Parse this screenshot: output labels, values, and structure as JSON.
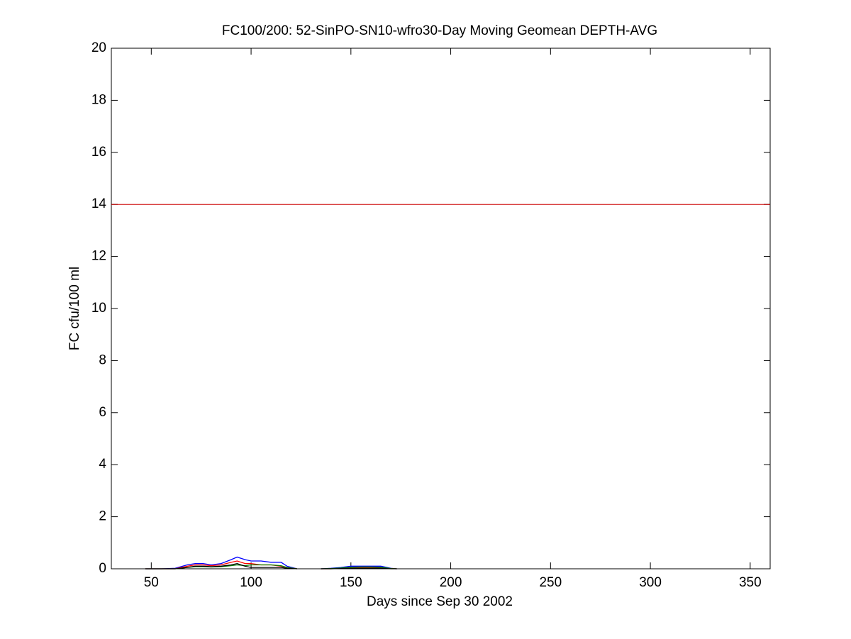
{
  "chart_data": {
    "type": "line",
    "title": "FC100/200: 52-SinPO-SN10-wfro30-Day Moving Geomean DEPTH-AVG",
    "xlabel": "Days since Sep 30 2002",
    "ylabel": "FC cfu/100 ml",
    "x": [
      47,
      55,
      62,
      68,
      72,
      76,
      80,
      85,
      90,
      93,
      97,
      100,
      105,
      110,
      115,
      118,
      123,
      130,
      135,
      140,
      145,
      150,
      155,
      160,
      165,
      170,
      173
    ],
    "series": [
      {
        "color": "#0000ff",
        "values": [
          0,
          0,
          0.02,
          0.15,
          0.2,
          0.2,
          0.15,
          0.2,
          0.35,
          0.45,
          0.35,
          0.3,
          0.3,
          0.25,
          0.25,
          0.1,
          0,
          null,
          0,
          0.02,
          0.05,
          0.1,
          0.1,
          0.1,
          0.1,
          0.02,
          0
        ]
      },
      {
        "color": "#ff0000",
        "values": [
          0,
          0,
          0,
          0.1,
          0.15,
          0.15,
          0.12,
          0.15,
          0.25,
          0.3,
          0.2,
          0.2,
          0.15,
          0.15,
          0.1,
          0.05,
          0,
          null,
          0,
          0,
          0.02,
          0.05,
          0.05,
          0.05,
          0.04,
          0.01,
          0
        ]
      },
      {
        "color": "#008000",
        "values": [
          0,
          0,
          0,
          0.05,
          0.08,
          0.08,
          0.07,
          0.08,
          0.12,
          0.15,
          0.12,
          0.15,
          0.15,
          0.15,
          0.12,
          0.05,
          0,
          null,
          0,
          0.01,
          0.03,
          0.06,
          0.07,
          0.07,
          0.06,
          0.01,
          0
        ]
      },
      {
        "color": "#000000",
        "values": [
          0,
          0,
          0,
          0.05,
          0.1,
          0.1,
          0.08,
          0.1,
          0.15,
          0.2,
          0.1,
          0.05,
          0.05,
          0.05,
          0.05,
          0.02,
          0,
          null,
          0,
          0,
          0.01,
          0.02,
          0.02,
          0.02,
          0.02,
          0,
          0
        ]
      }
    ],
    "hline": {
      "value": 14,
      "color": "#cc0000"
    },
    "xlim": [
      30,
      360
    ],
    "xticks": [
      50,
      100,
      150,
      200,
      250,
      300,
      350
    ],
    "ylim": [
      0,
      20
    ],
    "yticks": [
      0,
      2,
      4,
      6,
      8,
      10,
      12,
      14,
      16,
      18,
      20
    ],
    "grid": false
  }
}
